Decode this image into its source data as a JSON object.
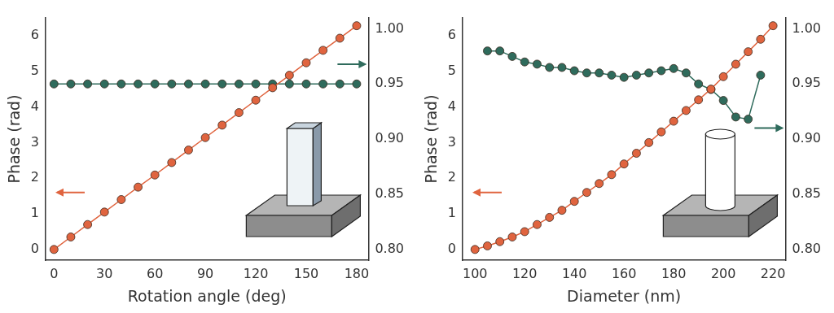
{
  "chart_data": [
    {
      "type": "line",
      "xlabel": "Rotation angle (deg)",
      "ylabel": "Phase (rad)",
      "xlim": [
        -5,
        187
      ],
      "xticks": [
        0,
        30,
        60,
        90,
        120,
        150,
        180
      ],
      "ylim": [
        -0.3,
        6.5
      ],
      "yticks": [
        0,
        1,
        2,
        3,
        4,
        5,
        6
      ],
      "y2lim": [
        0.79,
        1.01
      ],
      "y2ticks": [
        {
          "value": 0.8,
          "label": "0.80"
        },
        {
          "value": 0.85,
          "label": "0.85"
        },
        {
          "value": 0.9,
          "label": "0.90"
        },
        {
          "value": 0.95,
          "label": "0.95"
        },
        {
          "value": 1.0,
          "label": "1.00"
        }
      ],
      "grid": false,
      "series": [
        {
          "color": "#e0643f",
          "marker": "circle",
          "line_style": "solid",
          "x": [
            0,
            10,
            20,
            30,
            40,
            50,
            60,
            70,
            80,
            90,
            100,
            110,
            120,
            130,
            140,
            150,
            160,
            170,
            180
          ],
          "values": [
            0,
            0.35,
            0.7,
            1.05,
            1.4,
            1.75,
            2.09,
            2.44,
            2.79,
            3.14,
            3.49,
            3.84,
            4.19,
            4.54,
            4.89,
            5.24,
            5.59,
            5.93,
            6.28
          ]
        },
        {
          "color": "#2f6b5c",
          "marker": "circle",
          "line_style": "solid",
          "axis": "y2",
          "x": [
            0,
            10,
            20,
            30,
            40,
            50,
            60,
            70,
            80,
            90,
            100,
            110,
            120,
            130,
            140,
            150,
            160,
            170,
            180
          ],
          "values": [
            0.95,
            0.95,
            0.95,
            0.95,
            0.95,
            0.95,
            0.95,
            0.95,
            0.95,
            0.95,
            0.95,
            0.95,
            0.95,
            0.95,
            0.95,
            0.95,
            0.95,
            0.95,
            0.95
          ]
        }
      ]
    },
    {
      "type": "line",
      "xlabel": "Diameter (nm)",
      "ylabel": "Phase (rad)",
      "xlim": [
        95,
        225
      ],
      "xticks": [
        100,
        120,
        140,
        160,
        180,
        200,
        220
      ],
      "ylim": [
        -0.3,
        6.5
      ],
      "yticks": [
        0,
        1,
        2,
        3,
        4,
        5,
        6
      ],
      "y2lim": [
        0.79,
        1.01
      ],
      "y2ticks": [
        {
          "value": 0.8,
          "label": "0.80"
        },
        {
          "value": 0.85,
          "label": "0.85"
        },
        {
          "value": 0.9,
          "label": "0.90"
        },
        {
          "value": 0.95,
          "label": "0.95"
        },
        {
          "value": 1.0,
          "label": "1.00"
        }
      ],
      "grid": false,
      "series": [
        {
          "color": "#e0643f",
          "marker": "circle",
          "line_style": "solid",
          "x": [
            100,
            105,
            110,
            115,
            120,
            125,
            130,
            135,
            140,
            145,
            150,
            155,
            160,
            165,
            170,
            175,
            180,
            185,
            190,
            195,
            200,
            205,
            210,
            215,
            220
          ],
          "values": [
            0,
            0.1,
            0.22,
            0.35,
            0.5,
            0.7,
            0.9,
            1.1,
            1.35,
            1.6,
            1.85,
            2.1,
            2.4,
            2.7,
            3.0,
            3.3,
            3.6,
            3.9,
            4.2,
            4.5,
            4.85,
            5.2,
            5.55,
            5.9,
            6.28
          ]
        },
        {
          "color": "#2f6b5c",
          "marker": "circle",
          "line_style": "solid",
          "axis": "y2",
          "x": [
            105,
            110,
            115,
            120,
            125,
            130,
            135,
            140,
            145,
            150,
            155,
            160,
            165,
            170,
            175,
            180,
            185,
            190,
            195,
            200,
            205,
            210,
            215
          ],
          "values": [
            0.98,
            0.98,
            0.975,
            0.97,
            0.968,
            0.965,
            0.965,
            0.962,
            0.96,
            0.96,
            0.958,
            0.956,
            0.958,
            0.96,
            0.962,
            0.964,
            0.96,
            0.95,
            0.945,
            0.935,
            0.92,
            0.918,
            0.958
          ]
        }
      ]
    }
  ]
}
